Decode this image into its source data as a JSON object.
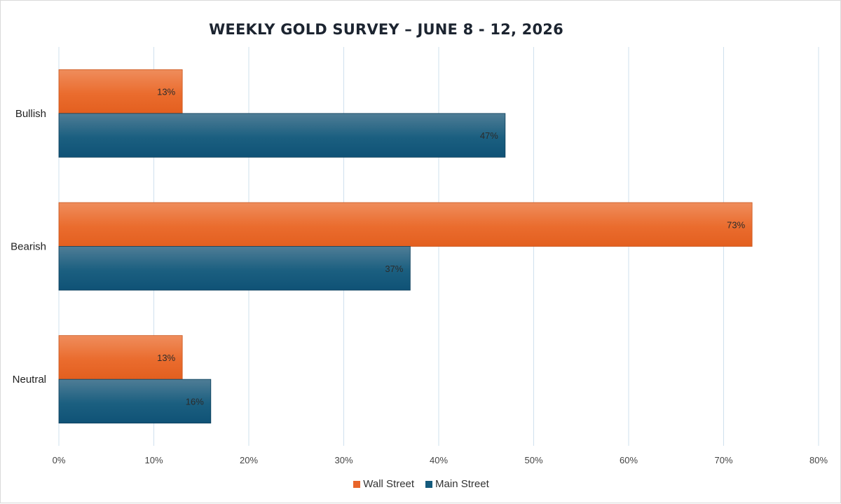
{
  "chart_data": {
    "type": "bar",
    "orientation": "horizontal",
    "title": "WEEKLY GOLD SURVEY – JUNE 8 - 12, 2026",
    "categories": [
      "Bullish",
      "Bearish",
      "Neutral"
    ],
    "series": [
      {
        "name": "Wall Street",
        "values": [
          13,
          73,
          13
        ],
        "color": "#e8652a"
      },
      {
        "name": "Main Street",
        "values": [
          47,
          37,
          16
        ],
        "color": "#145a7c"
      }
    ],
    "data_labels": [
      [
        "13%",
        "73%",
        "13%"
      ],
      [
        "47%",
        "37%",
        "16%"
      ]
    ],
    "xlim": [
      0,
      80
    ],
    "xticks": [
      0,
      10,
      20,
      30,
      40,
      50,
      60,
      70,
      80
    ],
    "xtick_labels": [
      "0%",
      "10%",
      "20%",
      "30%",
      "40%",
      "50%",
      "60%",
      "70%",
      "80%"
    ],
    "xlabel": "",
    "ylabel": "",
    "grid": "vertical",
    "legend_position": "bottom"
  }
}
